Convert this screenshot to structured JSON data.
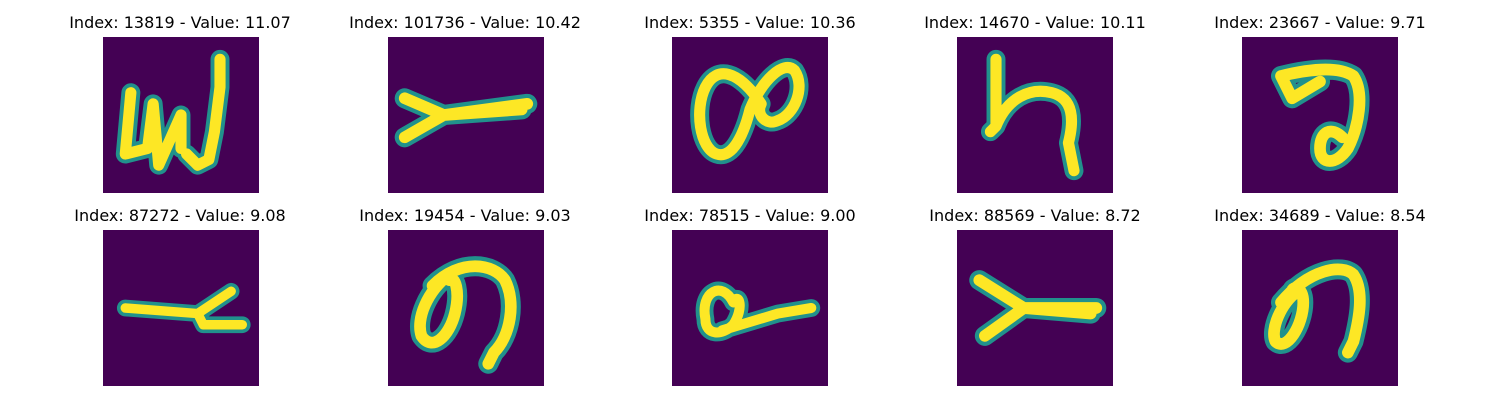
{
  "colors": {
    "background": "#440154",
    "stroke_mid": "#21918c",
    "stroke_core": "#fde725"
  },
  "panels": [
    {
      "title": "Index: 13819 - Value: 11.07",
      "glyph": "w-like-glyph"
    },
    {
      "title": "Index: 101736 - Value: 10.42",
      "glyph": "y-like-glyph"
    },
    {
      "title": "Index: 5355 - Value: 10.36",
      "glyph": "infinity-glyph"
    },
    {
      "title": "Index: 14670 - Value: 10.11",
      "glyph": "h-like-glyph"
    },
    {
      "title": "Index: 23667 - Value: 9.71",
      "glyph": "hook-glyph"
    },
    {
      "title": "Index: 87272 - Value: 9.08",
      "glyph": "t-like-glyph"
    },
    {
      "title": "Index: 19454 - Value: 9.03",
      "glyph": "loop-glyph"
    },
    {
      "title": "Index: 78515 - Value: 9.00",
      "glyph": "small-loop-glyph"
    },
    {
      "title": "Index: 88569 - Value: 8.72",
      "glyph": "y-like-glyph"
    },
    {
      "title": "Index: 34689 - Value: 8.54",
      "glyph": "loop-glyph"
    }
  ]
}
